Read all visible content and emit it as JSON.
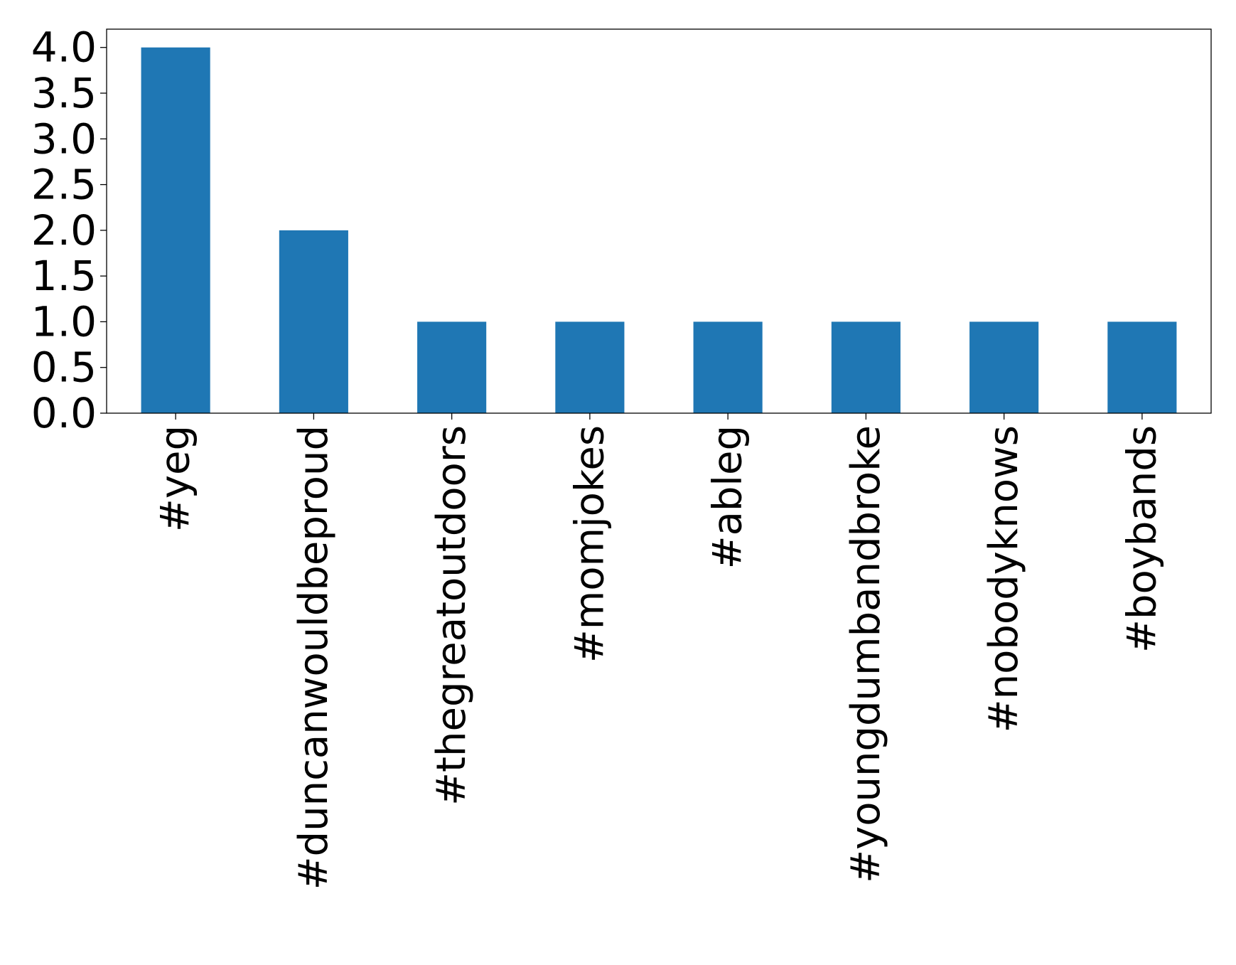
{
  "chart_data": {
    "type": "bar",
    "categories": [
      "#yeg",
      "#duncanwouldbeproud",
      "#thegreatoutdoors",
      "#momjokes",
      "#ableg",
      "#youngdumbandbroke",
      "#nobodyknows",
      "#boybands"
    ],
    "values": [
      4,
      2,
      1,
      1,
      1,
      1,
      1,
      1
    ],
    "ylim": [
      0,
      4.2
    ],
    "yticks": [
      "0.0",
      "0.5",
      "1.0",
      "1.5",
      "2.0",
      "2.5",
      "3.0",
      "3.5",
      "4.0"
    ],
    "bar_color": "#1f77b4",
    "grid": false,
    "legend": "none"
  }
}
